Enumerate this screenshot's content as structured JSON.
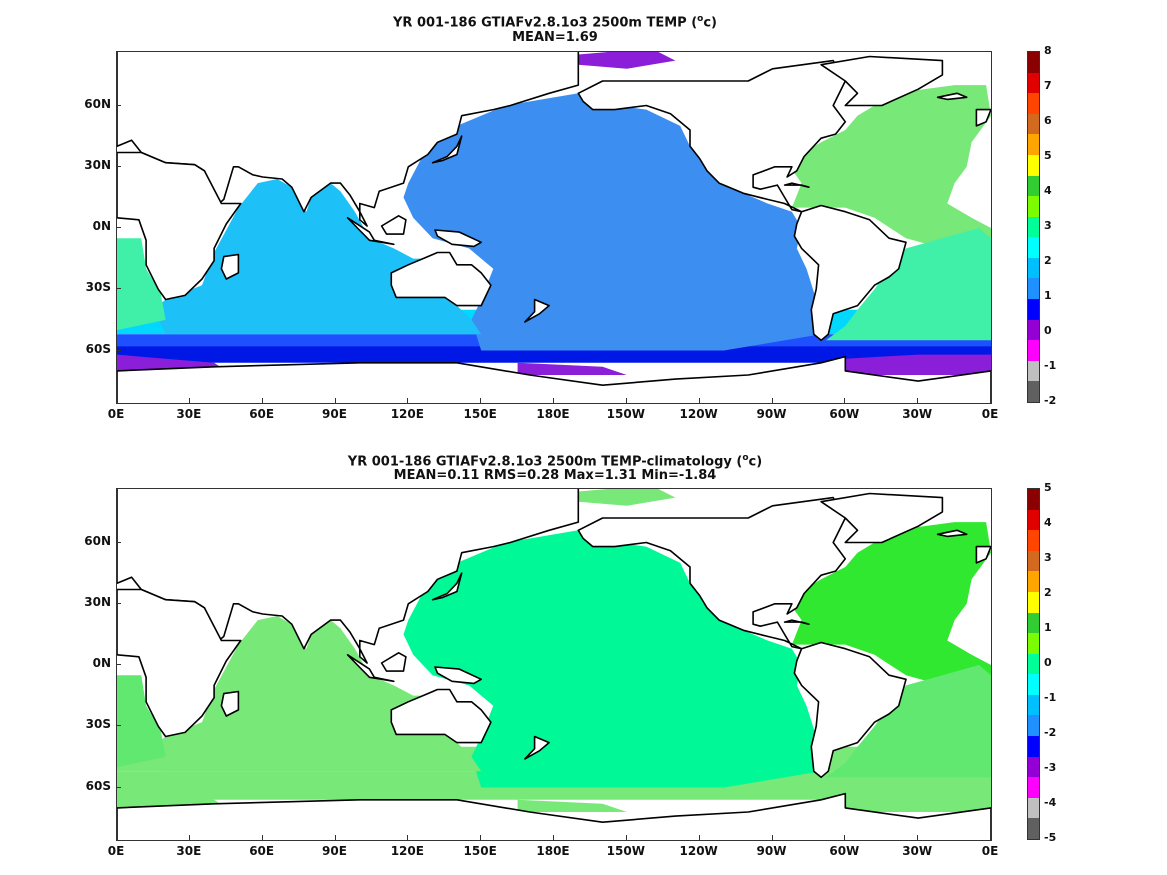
{
  "panels": [
    {
      "title_line1": "YR 001-186 GTIAFv2.8.1o3 2500m TEMP (",
      "title_unit_super": "o",
      "title_unit_tail": "c)",
      "title_line2": "MEAN=1.69",
      "colorbar_labels": [
        "8",
        "7",
        "6",
        "5",
        "4",
        "3",
        "2",
        "1",
        "0",
        "-1",
        "-2"
      ],
      "colorbar_colors": [
        "#8b0000",
        "#e00000",
        "#ff4500",
        "#d2691e",
        "#ffa500",
        "#ffff00",
        "#32cd32",
        "#7cfc00",
        "#00ff99",
        "#00ffff",
        "#00bfff",
        "#1e90ff",
        "#0000ff",
        "#9400d3",
        "#ff00ff",
        "#c0c0c0",
        "#606060"
      ],
      "ocean_colors": {
        "pacific": "#3c8ff0",
        "indian": "#1ec0f8",
        "southern_cyan": "#00d8ff",
        "southern_blue": "#1e50ff",
        "southern_deep": "#0018e6",
        "southern_violet": "#8b1ed8",
        "atlantic_north": "#78e878",
        "atlantic_south": "#40f0a8"
      }
    },
    {
      "title_line1": "YR 001-186 GTIAFv2.8.1o3 2500m TEMP-climatology (",
      "title_unit_super": "o",
      "title_unit_tail": "c)",
      "title_line2": "MEAN=0.11   RMS=0.28   Max=1.31   Min=-1.84",
      "colorbar_labels": [
        "5",
        "4",
        "3",
        "2",
        "1",
        "0",
        "-1",
        "-2",
        "-3",
        "-4",
        "-5"
      ],
      "colorbar_colors": [
        "#8b0000",
        "#e00000",
        "#ff4500",
        "#d2691e",
        "#ffa500",
        "#ffff00",
        "#32cd32",
        "#7cfc00",
        "#00ff99",
        "#00ffff",
        "#00bfff",
        "#1e90ff",
        "#0000ff",
        "#9400d3",
        "#ff00ff",
        "#c0c0c0",
        "#606060"
      ],
      "ocean_colors": {
        "pacific": "#00f896",
        "indian": "#78e878",
        "southern_cyan": "#78e878",
        "southern_blue": "#78e878",
        "southern_deep": "#78e878",
        "southern_violet": "#78e878",
        "atlantic_north": "#30e830",
        "atlantic_south": "#60e870"
      }
    }
  ],
  "axes": {
    "ylabels": [
      "60N",
      "30N",
      "0N",
      "30S",
      "60S"
    ],
    "xlabels": [
      "0E",
      "30E",
      "60E",
      "90E",
      "120E",
      "150E",
      "180E",
      "150W",
      "120W",
      "90W",
      "60W",
      "30W",
      "0E"
    ]
  },
  "colors": {
    "land": "#ffffff",
    "coast": "#000000"
  }
}
